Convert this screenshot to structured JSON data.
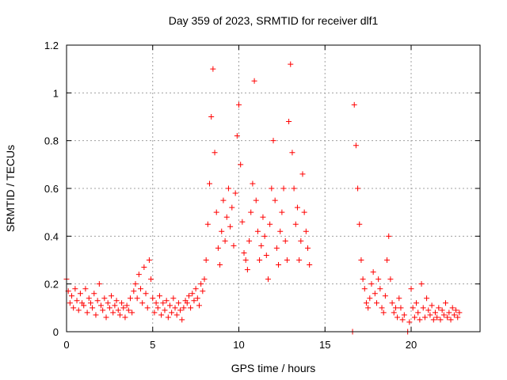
{
  "chart_data": {
    "type": "scatter",
    "title": "Day 359 of 2023, SRMTID for receiver dlf1",
    "xlabel": "GPS time / hours",
    "ylabel": "SRMTID / TECUs",
    "xlim": [
      0,
      24
    ],
    "ylim": [
      0,
      1.2
    ],
    "x_ticks": [
      0,
      5,
      10,
      15,
      20
    ],
    "x_tick_labels": [
      "0",
      "5",
      "10",
      "15",
      "20"
    ],
    "y_ticks": [
      0,
      0.2,
      0.4,
      0.6,
      0.8,
      1,
      1.2
    ],
    "y_tick_labels": [
      "0",
      "0.2",
      "0.4",
      "0.6",
      "0.8",
      "1",
      "1.2"
    ],
    "grid": true,
    "marker": "plus",
    "series": [
      {
        "name": "SRMTID",
        "color": "#ff0000",
        "points": [
          [
            0.0,
            0.22
          ],
          [
            0.1,
            0.17
          ],
          [
            0.2,
            0.12
          ],
          [
            0.3,
            0.15
          ],
          [
            0.4,
            0.1
          ],
          [
            0.5,
            0.18
          ],
          [
            0.6,
            0.13
          ],
          [
            0.7,
            0.09
          ],
          [
            0.8,
            0.16
          ],
          [
            0.9,
            0.12
          ],
          [
            1.0,
            0.11
          ],
          [
            1.1,
            0.18
          ],
          [
            1.2,
            0.08
          ],
          [
            1.3,
            0.14
          ],
          [
            1.4,
            0.12
          ],
          [
            1.5,
            0.1
          ],
          [
            1.6,
            0.16
          ],
          [
            1.7,
            0.07
          ],
          [
            1.8,
            0.13
          ],
          [
            1.9,
            0.2
          ],
          [
            2.0,
            0.11
          ],
          [
            2.1,
            0.09
          ],
          [
            2.2,
            0.14
          ],
          [
            2.3,
            0.06
          ],
          [
            2.4,
            0.12
          ],
          [
            2.5,
            0.1
          ],
          [
            2.6,
            0.15
          ],
          [
            2.7,
            0.08
          ],
          [
            2.8,
            0.11
          ],
          [
            2.9,
            0.13
          ],
          [
            3.0,
            0.09
          ],
          [
            3.1,
            0.07
          ],
          [
            3.2,
            0.12
          ],
          [
            3.3,
            0.1
          ],
          [
            3.4,
            0.06
          ],
          [
            3.5,
            0.11
          ],
          [
            3.6,
            0.09
          ],
          [
            3.7,
            0.14
          ],
          [
            3.8,
            0.08
          ],
          [
            3.9,
            0.17
          ],
          [
            4.0,
            0.2
          ],
          [
            4.1,
            0.14
          ],
          [
            4.2,
            0.24
          ],
          [
            4.3,
            0.18
          ],
          [
            4.4,
            0.12
          ],
          [
            4.5,
            0.27
          ],
          [
            4.6,
            0.16
          ],
          [
            4.7,
            0.1
          ],
          [
            4.8,
            0.3
          ],
          [
            4.9,
            0.22
          ],
          [
            5.0,
            0.14
          ],
          [
            5.1,
            0.08
          ],
          [
            5.2,
            0.12
          ],
          [
            5.3,
            0.1
          ],
          [
            5.4,
            0.15
          ],
          [
            5.5,
            0.07
          ],
          [
            5.6,
            0.12
          ],
          [
            5.7,
            0.09
          ],
          [
            5.8,
            0.13
          ],
          [
            5.9,
            0.06
          ],
          [
            6.0,
            0.11
          ],
          [
            6.1,
            0.08
          ],
          [
            6.2,
            0.14
          ],
          [
            6.3,
            0.1
          ],
          [
            6.4,
            0.07
          ],
          [
            6.5,
            0.12
          ],
          [
            6.6,
            0.09
          ],
          [
            6.7,
            0.05
          ],
          [
            6.8,
            0.1
          ],
          [
            6.9,
            0.13
          ],
          [
            7.0,
            0.12
          ],
          [
            7.1,
            0.15
          ],
          [
            7.2,
            0.1
          ],
          [
            7.3,
            0.16
          ],
          [
            7.4,
            0.13
          ],
          [
            7.5,
            0.18
          ],
          [
            7.6,
            0.14
          ],
          [
            7.7,
            0.11
          ],
          [
            7.8,
            0.2
          ],
          [
            7.9,
            0.17
          ],
          [
            8.0,
            0.22
          ],
          [
            8.1,
            0.3
          ],
          [
            8.2,
            0.45
          ],
          [
            8.3,
            0.62
          ],
          [
            8.4,
            0.9
          ],
          [
            8.5,
            1.1
          ],
          [
            8.6,
            0.75
          ],
          [
            8.7,
            0.5
          ],
          [
            8.8,
            0.35
          ],
          [
            8.9,
            0.28
          ],
          [
            9.0,
            0.42
          ],
          [
            9.1,
            0.55
          ],
          [
            9.2,
            0.38
          ],
          [
            9.3,
            0.48
          ],
          [
            9.4,
            0.6
          ],
          [
            9.5,
            0.44
          ],
          [
            9.6,
            0.52
          ],
          [
            9.7,
            0.36
          ],
          [
            9.8,
            0.58
          ],
          [
            9.9,
            0.82
          ],
          [
            10.0,
            0.95
          ],
          [
            10.1,
            0.7
          ],
          [
            10.2,
            0.46
          ],
          [
            10.3,
            0.33
          ],
          [
            10.4,
            0.3
          ],
          [
            10.5,
            0.26
          ],
          [
            10.6,
            0.38
          ],
          [
            10.7,
            0.5
          ],
          [
            10.8,
            0.62
          ],
          [
            10.9,
            1.05
          ],
          [
            11.0,
            0.55
          ],
          [
            11.1,
            0.42
          ],
          [
            11.2,
            0.3
          ],
          [
            11.3,
            0.36
          ],
          [
            11.4,
            0.48
          ],
          [
            11.5,
            0.4
          ],
          [
            11.6,
            0.32
          ],
          [
            11.7,
            0.22
          ],
          [
            11.8,
            0.45
          ],
          [
            11.9,
            0.6
          ],
          [
            12.0,
            0.8
          ],
          [
            12.1,
            0.55
          ],
          [
            12.2,
            0.35
          ],
          [
            12.3,
            0.28
          ],
          [
            12.4,
            0.42
          ],
          [
            12.5,
            0.5
          ],
          [
            12.6,
            0.6
          ],
          [
            12.7,
            0.38
          ],
          [
            12.8,
            0.3
          ],
          [
            12.9,
            0.88
          ],
          [
            13.0,
            1.12
          ],
          [
            13.1,
            0.75
          ],
          [
            13.2,
            0.6
          ],
          [
            13.3,
            0.45
          ],
          [
            13.4,
            0.52
          ],
          [
            13.5,
            0.3
          ],
          [
            13.6,
            0.38
          ],
          [
            13.7,
            0.66
          ],
          [
            13.8,
            0.5
          ],
          [
            13.9,
            0.42
          ],
          [
            14.0,
            0.35
          ],
          [
            14.1,
            0.28
          ],
          [
            16.6,
            0.0
          ],
          [
            16.7,
            0.95
          ],
          [
            16.8,
            0.78
          ],
          [
            16.9,
            0.6
          ],
          [
            17.0,
            0.45
          ],
          [
            17.1,
            0.3
          ],
          [
            17.2,
            0.22
          ],
          [
            17.3,
            0.18
          ],
          [
            17.4,
            0.12
          ],
          [
            17.5,
            0.1
          ],
          [
            17.6,
            0.14
          ],
          [
            17.7,
            0.2
          ],
          [
            17.8,
            0.25
          ],
          [
            17.9,
            0.16
          ],
          [
            18.0,
            0.12
          ],
          [
            18.1,
            0.22
          ],
          [
            18.2,
            0.18
          ],
          [
            18.3,
            0.1
          ],
          [
            18.4,
            0.08
          ],
          [
            18.5,
            0.15
          ],
          [
            18.6,
            0.3
          ],
          [
            18.7,
            0.4
          ],
          [
            18.8,
            0.22
          ],
          [
            18.9,
            0.12
          ],
          [
            19.0,
            0.08
          ],
          [
            19.1,
            0.1
          ],
          [
            19.2,
            0.06
          ],
          [
            19.3,
            0.14
          ],
          [
            19.4,
            0.1
          ],
          [
            19.5,
            0.05
          ],
          [
            19.6,
            0.07
          ],
          [
            19.8,
            0.0
          ],
          [
            19.9,
            0.04
          ],
          [
            20.0,
            0.18
          ],
          [
            20.1,
            0.1
          ],
          [
            20.2,
            0.06
          ],
          [
            20.3,
            0.12
          ],
          [
            20.4,
            0.08
          ],
          [
            20.5,
            0.05
          ],
          [
            20.6,
            0.2
          ],
          [
            20.7,
            0.1
          ],
          [
            20.8,
            0.06
          ],
          [
            20.9,
            0.14
          ],
          [
            21.0,
            0.09
          ],
          [
            21.1,
            0.07
          ],
          [
            21.2,
            0.11
          ],
          [
            21.3,
            0.05
          ],
          [
            21.4,
            0.08
          ],
          [
            21.5,
            0.06
          ],
          [
            21.6,
            0.1
          ],
          [
            21.7,
            0.05
          ],
          [
            21.8,
            0.09
          ],
          [
            21.9,
            0.07
          ],
          [
            22.0,
            0.12
          ],
          [
            22.1,
            0.06
          ],
          [
            22.2,
            0.08
          ],
          [
            22.3,
            0.05
          ],
          [
            22.4,
            0.1
          ],
          [
            22.5,
            0.07
          ],
          [
            22.6,
            0.09
          ],
          [
            22.7,
            0.06
          ],
          [
            22.8,
            0.08
          ]
        ]
      }
    ]
  }
}
